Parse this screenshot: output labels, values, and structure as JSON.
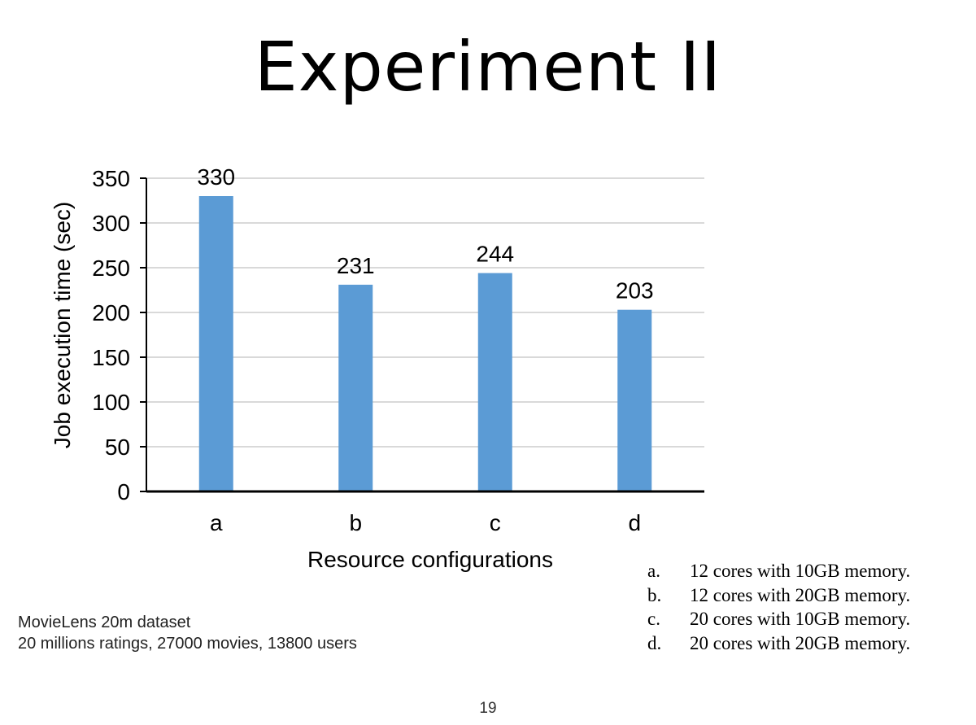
{
  "slide": {
    "title": "Experiment II",
    "page_number": "19"
  },
  "dataset_note": {
    "line1": "MovieLens 20m dataset",
    "line2": "20 millions ratings, 27000 movies, 13800 users"
  },
  "config_legend": [
    {
      "key": "a.",
      "text": "12 cores with 10GB memory."
    },
    {
      "key": "b.",
      "text": "12 cores with 20GB memory."
    },
    {
      "key": "c.",
      "text": "20 cores with 10GB memory."
    },
    {
      "key": "d.",
      "text": "20 cores with 20GB memory."
    }
  ],
  "chart_data": {
    "type": "bar",
    "categories": [
      "a",
      "b",
      "c",
      "d"
    ],
    "values": [
      330,
      231,
      244,
      203
    ],
    "data_labels": [
      "330",
      "231",
      "244",
      "203"
    ],
    "xlabel": "Resource configurations",
    "ylabel": "Job execution time (sec)",
    "ylim": [
      0,
      350
    ],
    "yticks": [
      0,
      50,
      100,
      150,
      200,
      250,
      300,
      350
    ],
    "grid": true,
    "bar_color": "#5B9BD5",
    "grid_color": "#D9D9D9",
    "axis_color": "#000000"
  }
}
